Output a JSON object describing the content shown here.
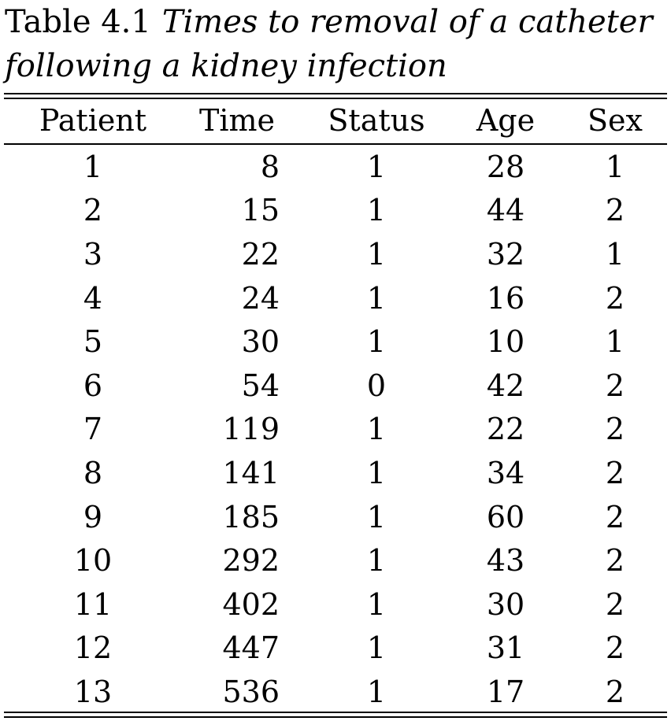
{
  "caption": {
    "label": "Table 4.1",
    "text": "Times to removal of a catheter following a kidney infection",
    "line1": "Times to removal of a catheter",
    "line2": "following a kidney infection"
  },
  "table": {
    "columns": [
      "Patient",
      "Time",
      "Status",
      "Age",
      "Sex"
    ],
    "rows": [
      [
        "1",
        "8",
        "1",
        "28",
        "1"
      ],
      [
        "2",
        "15",
        "1",
        "44",
        "2"
      ],
      [
        "3",
        "22",
        "1",
        "32",
        "1"
      ],
      [
        "4",
        "24",
        "1",
        "16",
        "2"
      ],
      [
        "5",
        "30",
        "1",
        "10",
        "1"
      ],
      [
        "6",
        "54",
        "0",
        "42",
        "2"
      ],
      [
        "7",
        "119",
        "1",
        "22",
        "2"
      ],
      [
        "8",
        "141",
        "1",
        "34",
        "2"
      ],
      [
        "9",
        "185",
        "1",
        "60",
        "2"
      ],
      [
        "10",
        "292",
        "1",
        "43",
        "2"
      ],
      [
        "11",
        "402",
        "1",
        "30",
        "2"
      ],
      [
        "12",
        "447",
        "1",
        "31",
        "2"
      ],
      [
        "13",
        "536",
        "1",
        "17",
        "2"
      ]
    ]
  }
}
